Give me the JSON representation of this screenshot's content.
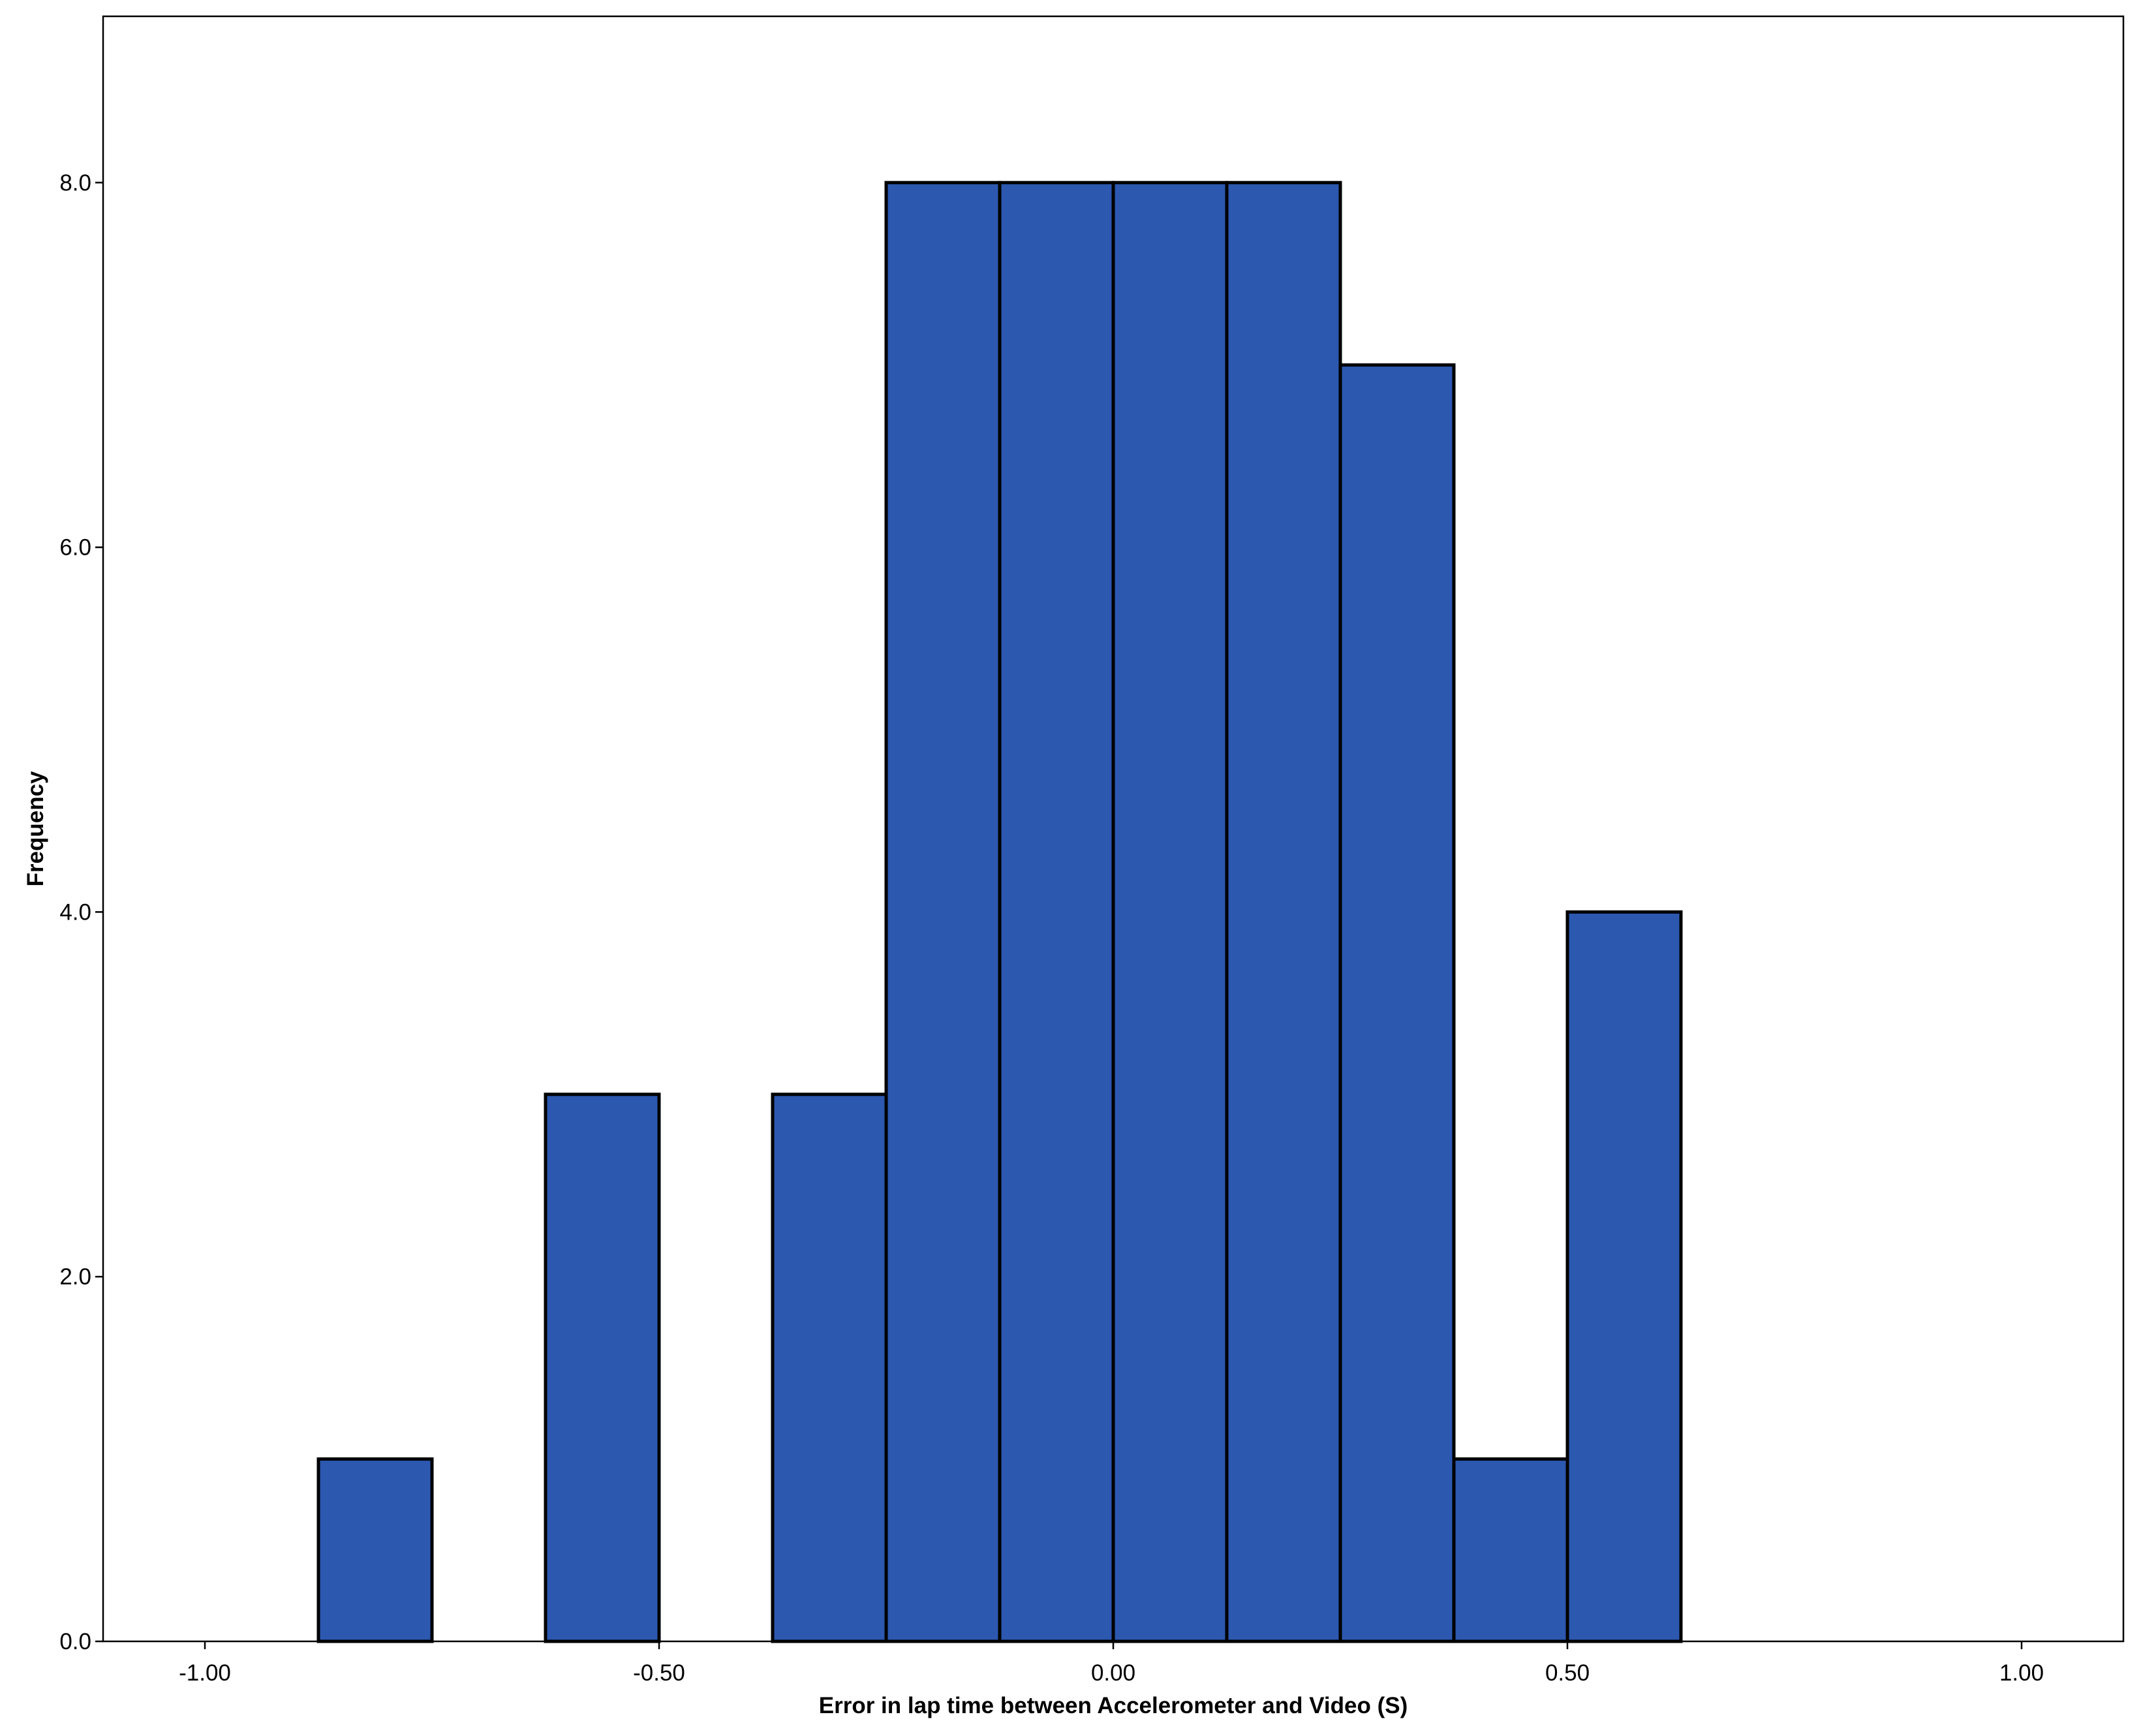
{
  "chart_data": {
    "type": "bar",
    "subtype": "histogram",
    "title": "",
    "xlabel": "Error in lap time between Accelerometer and Video (S)",
    "ylabel": "Frequency",
    "xlim": [
      -1.2,
      1.2
    ],
    "ylim": [
      0,
      8.9
    ],
    "xticks": [
      -1.0,
      -0.5,
      0.0,
      0.5,
      1.0
    ],
    "xtick_labels": [
      "-1.00",
      "-0.50",
      "0.00",
      "0.50",
      "1.00"
    ],
    "yticks": [
      0,
      2,
      4,
      6,
      8
    ],
    "ytick_labels": [
      "0.0",
      "2.0",
      "4.0",
      "6.0",
      "8.0"
    ],
    "bin_width": 0.125,
    "bins": [
      {
        "x0": -0.875,
        "x1": -0.75,
        "count": 1
      },
      {
        "x0": -0.625,
        "x1": -0.5,
        "count": 3
      },
      {
        "x0": -0.375,
        "x1": -0.25,
        "count": 3
      },
      {
        "x0": -0.25,
        "x1": -0.125,
        "count": 8
      },
      {
        "x0": -0.125,
        "x1": 0.0,
        "count": 8
      },
      {
        "x0": 0.0,
        "x1": 0.125,
        "count": 8
      },
      {
        "x0": 0.125,
        "x1": 0.25,
        "count": 8
      },
      {
        "x0": 0.25,
        "x1": 0.375,
        "count": 7
      },
      {
        "x0": 0.375,
        "x1": 0.5,
        "count": 1
      },
      {
        "x0": 0.5,
        "x1": 0.625,
        "count": 4
      }
    ],
    "bar_color": "#2c58b0",
    "bar_edge_color": "#000000",
    "grid": false,
    "legend": "none"
  }
}
